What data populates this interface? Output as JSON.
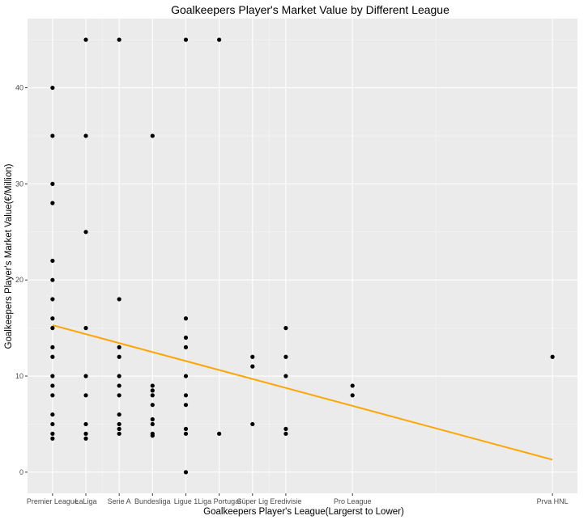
{
  "chart_data": {
    "type": "scatter",
    "title": "Goalkeepers Player's Market Value by Different League",
    "xlabel": "Goalkeepers Player's League(Largerst to Lower)",
    "ylabel": "Goalkeepers Player's Market Value(€/Million)",
    "x_ticks": [
      {
        "label": "Premier League",
        "x": 1
      },
      {
        "label": "LaLiga",
        "x": 2
      },
      {
        "label": "Serie A",
        "x": 3
      },
      {
        "label": "Bundesliga",
        "x": 4
      },
      {
        "label": "Ligue 1",
        "x": 5
      },
      {
        "label": "Liga Portugal",
        "x": 6
      },
      {
        "label": "Süper Lig",
        "x": 7
      },
      {
        "label": "Eredivisie",
        "x": 8
      },
      {
        "label": "Pro League",
        "x": 10
      },
      {
        "label": "Prva HNL",
        "x": 16
      }
    ],
    "xlim": [
      0.25,
      16.75
    ],
    "ylim": [
      -2.2,
      47.2
    ],
    "y_ticks": [
      0,
      10,
      20,
      30,
      40
    ],
    "grid": true,
    "points": [
      {
        "x": 1,
        "y": 40
      },
      {
        "x": 1,
        "y": 35
      },
      {
        "x": 1,
        "y": 30
      },
      {
        "x": 1,
        "y": 28
      },
      {
        "x": 1,
        "y": 22
      },
      {
        "x": 1,
        "y": 20
      },
      {
        "x": 1,
        "y": 18
      },
      {
        "x": 1,
        "y": 16
      },
      {
        "x": 1,
        "y": 15
      },
      {
        "x": 1,
        "y": 13
      },
      {
        "x": 1,
        "y": 12
      },
      {
        "x": 1,
        "y": 10
      },
      {
        "x": 1,
        "y": 9
      },
      {
        "x": 1,
        "y": 8
      },
      {
        "x": 1,
        "y": 6
      },
      {
        "x": 1,
        "y": 5
      },
      {
        "x": 1,
        "y": 4
      },
      {
        "x": 1,
        "y": 3.5
      },
      {
        "x": 2,
        "y": 45
      },
      {
        "x": 2,
        "y": 35
      },
      {
        "x": 2,
        "y": 25
      },
      {
        "x": 2,
        "y": 15
      },
      {
        "x": 2,
        "y": 10
      },
      {
        "x": 2,
        "y": 8
      },
      {
        "x": 2,
        "y": 5
      },
      {
        "x": 2,
        "y": 4
      },
      {
        "x": 2,
        "y": 3.5
      },
      {
        "x": 3,
        "y": 45
      },
      {
        "x": 3,
        "y": 18
      },
      {
        "x": 3,
        "y": 13
      },
      {
        "x": 3,
        "y": 12
      },
      {
        "x": 3,
        "y": 10
      },
      {
        "x": 3,
        "y": 9
      },
      {
        "x": 3,
        "y": 8
      },
      {
        "x": 3,
        "y": 6
      },
      {
        "x": 3,
        "y": 5
      },
      {
        "x": 3,
        "y": 4.5
      },
      {
        "x": 3,
        "y": 4
      },
      {
        "x": 4,
        "y": 35
      },
      {
        "x": 4,
        "y": 9
      },
      {
        "x": 4,
        "y": 8.5
      },
      {
        "x": 4,
        "y": 8
      },
      {
        "x": 4,
        "y": 7
      },
      {
        "x": 4,
        "y": 5.5
      },
      {
        "x": 4,
        "y": 5
      },
      {
        "x": 4,
        "y": 4
      },
      {
        "x": 4,
        "y": 3.8
      },
      {
        "x": 5,
        "y": 45
      },
      {
        "x": 5,
        "y": 16
      },
      {
        "x": 5,
        "y": 14
      },
      {
        "x": 5,
        "y": 13
      },
      {
        "x": 5,
        "y": 10
      },
      {
        "x": 5,
        "y": 8
      },
      {
        "x": 5,
        "y": 7
      },
      {
        "x": 5,
        "y": 4.5
      },
      {
        "x": 5,
        "y": 4
      },
      {
        "x": 5,
        "y": 0
      },
      {
        "x": 6,
        "y": 45
      },
      {
        "x": 6,
        "y": 4
      },
      {
        "x": 7,
        "y": 12
      },
      {
        "x": 7,
        "y": 11
      },
      {
        "x": 7,
        "y": 5
      },
      {
        "x": 8,
        "y": 15
      },
      {
        "x": 8,
        "y": 12
      },
      {
        "x": 8,
        "y": 10
      },
      {
        "x": 8,
        "y": 4.5
      },
      {
        "x": 8,
        "y": 4
      },
      {
        "x": 10,
        "y": 9
      },
      {
        "x": 10,
        "y": 8
      },
      {
        "x": 16,
        "y": 12
      }
    ],
    "trend_line": {
      "color": "#FFA500",
      "x": [
        1,
        16
      ],
      "y": [
        15.3,
        1.3
      ]
    }
  }
}
